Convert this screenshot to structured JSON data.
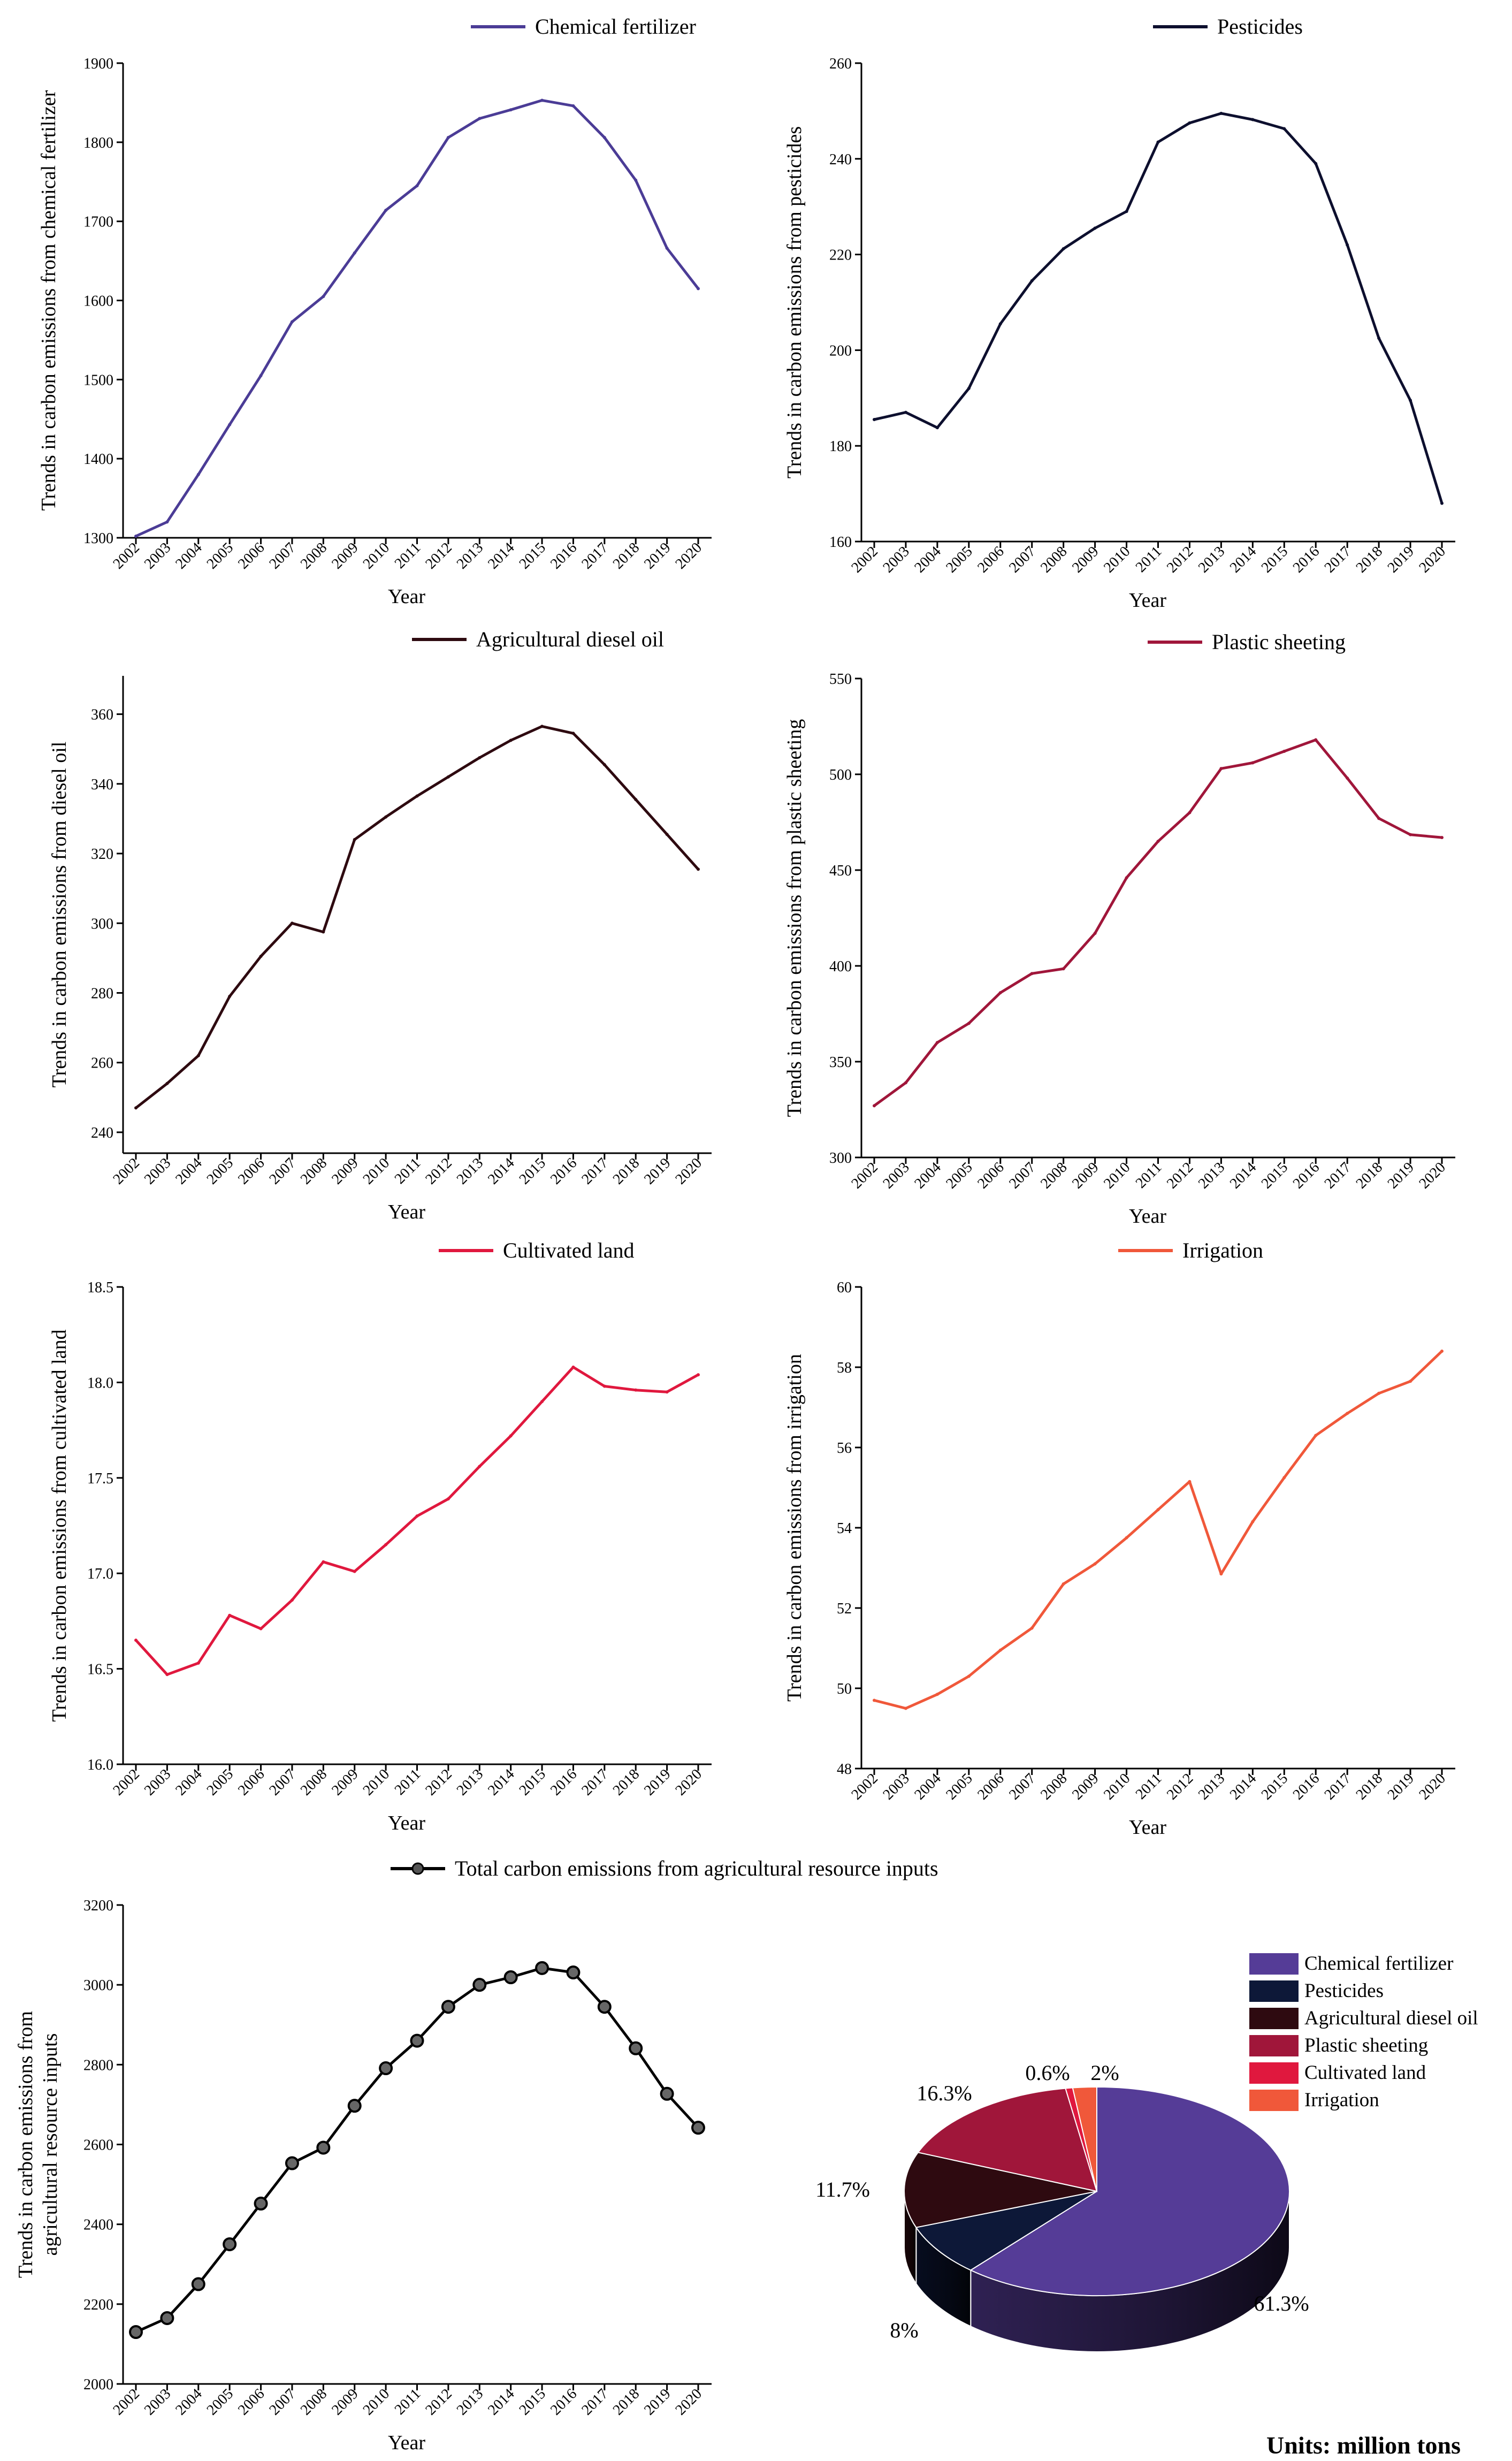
{
  "units_note": "Units: million tons",
  "chart_data": [
    {
      "type": "line",
      "color": "#4b3c96",
      "legend": "Chemical fertilizer",
      "xlabel": "Year",
      "ylabel": "Trends in carbon emissions from chemical fertilizer",
      "x": [
        "2002",
        "2003",
        "2004",
        "2005",
        "2006",
        "2007",
        "2008",
        "2009",
        "2010",
        "2011",
        "2012",
        "2013",
        "2014",
        "2015",
        "2016",
        "2017",
        "2018",
        "2019",
        "2020"
      ],
      "values": [
        1302,
        1320,
        1380,
        1443,
        1505,
        1573,
        1605,
        1660,
        1714,
        1745,
        1806,
        1830,
        1841,
        1853,
        1846,
        1806,
        1752,
        1666,
        1615
      ],
      "ylim": [
        1300,
        1900
      ],
      "yticks": [
        1300,
        1400,
        1500,
        1600,
        1700,
        1800,
        1900
      ]
    },
    {
      "type": "line",
      "color": "#0d0f2e",
      "legend": "Pesticides",
      "xlabel": "Year",
      "ylabel": "Trends in carbon emissions from pesticides",
      "x": [
        "2002",
        "2003",
        "2004",
        "2005",
        "2006",
        "2007",
        "2008",
        "2009",
        "2010",
        "2011",
        "2012",
        "2013",
        "2014",
        "2015",
        "2016",
        "2017",
        "2018",
        "2019",
        "2020"
      ],
      "values": [
        185.5,
        187,
        183.8,
        192,
        205.5,
        214.5,
        221.2,
        225.5,
        229,
        243.5,
        247.5,
        249.5,
        248.2,
        246.3,
        239,
        222,
        202.5,
        189.5,
        168
      ],
      "ylim": [
        160,
        260
      ],
      "yticks": [
        160,
        180,
        200,
        220,
        240,
        260
      ]
    },
    {
      "type": "line",
      "color": "#2e0a10",
      "legend": "Agricultural diesel oil",
      "xlabel": "Year",
      "ylabel": "Trends in carbon emissions from diesel oil",
      "x": [
        "2002",
        "2003",
        "2004",
        "2005",
        "2006",
        "2007",
        "2008",
        "2009",
        "2010",
        "2011",
        "2012",
        "2013",
        "2014",
        "2015",
        "2016",
        "2017",
        "2018",
        "2019",
        "2020"
      ],
      "values": [
        247,
        254,
        262,
        279,
        290.5,
        300,
        297.5,
        324,
        330.5,
        336.5,
        342,
        347.5,
        352.5,
        356.5,
        354.5,
        345.5,
        335.5,
        325.5,
        315.5
      ],
      "ylim": [
        234,
        371
      ],
      "yticks": [
        240,
        260,
        280,
        300,
        320,
        340,
        360
      ]
    },
    {
      "type": "line",
      "color": "#a0163a",
      "legend": "Plastic sheeting",
      "xlabel": "Year",
      "ylabel": "Trends in carbon emissions from plastic sheeting",
      "x": [
        "2002",
        "2003",
        "2004",
        "2005",
        "2006",
        "2007",
        "2008",
        "2009",
        "2010",
        "2011",
        "2012",
        "2013",
        "2014",
        "2015",
        "2016",
        "2017",
        "2018",
        "2019",
        "2020"
      ],
      "values": [
        327,
        339,
        360,
        370,
        386,
        396,
        398.5,
        417,
        446,
        465,
        480,
        503,
        506,
        512,
        518,
        498,
        477,
        468.5,
        467
      ],
      "ylim": [
        300,
        550
      ],
      "yticks": [
        300,
        350,
        400,
        450,
        500,
        550
      ]
    },
    {
      "type": "line",
      "color": "#e0183e",
      "legend": "Cultivated land",
      "xlabel": "Year",
      "ylabel": "Trends in carbon emissions from cultivated land",
      "x": [
        "2002",
        "2003",
        "2004",
        "2005",
        "2006",
        "2007",
        "2008",
        "2009",
        "2010",
        "2011",
        "2012",
        "2013",
        "2014",
        "2015",
        "2016",
        "2017",
        "2018",
        "2019",
        "2020"
      ],
      "values": [
        16.65,
        16.47,
        16.53,
        16.78,
        16.71,
        16.86,
        17.06,
        17.01,
        17.15,
        17.3,
        17.39,
        17.56,
        17.72,
        17.9,
        18.08,
        17.98,
        17.96,
        17.95,
        18.04
      ],
      "ylim": [
        16.0,
        18.5
      ],
      "yticks": [
        "16.0",
        "16.5",
        "17.0",
        "17.5",
        "18.0",
        "18.5"
      ]
    },
    {
      "type": "line",
      "color": "#f0583a",
      "legend": "Irrigation",
      "xlabel": "Year",
      "ylabel": "Trends in carbon emissions from irrigation",
      "x": [
        "2002",
        "2003",
        "2004",
        "2005",
        "2006",
        "2007",
        "2008",
        "2009",
        "2010",
        "2011",
        "2012",
        "2013",
        "2014",
        "2015",
        "2016",
        "2017",
        "2018",
        "2019",
        "2020"
      ],
      "values": [
        49.7,
        49.5,
        49.85,
        50.3,
        50.95,
        51.5,
        52.6,
        53.1,
        53.75,
        54.45,
        55.15,
        52.85,
        54.15,
        55.25,
        56.3,
        56.85,
        57.35,
        57.65,
        58.4
      ],
      "ylim": [
        48,
        60
      ],
      "yticks": [
        48,
        50,
        52,
        54,
        56,
        58,
        60
      ]
    },
    {
      "type": "line",
      "color": "#000000",
      "markers": true,
      "legend": "Total carbon emissions from agricultural resource inputs",
      "xlabel": "Year",
      "ylabel": [
        "Trends in carbon emissions from",
        "agricultural resource inputs"
      ],
      "x": [
        "2002",
        "2003",
        "2004",
        "2005",
        "2006",
        "2007",
        "2008",
        "2009",
        "2010",
        "2011",
        "2012",
        "2013",
        "2014",
        "2015",
        "2016",
        "2017",
        "2018",
        "2019",
        "2020"
      ],
      "values": [
        2130,
        2165,
        2250,
        2350,
        2452,
        2553,
        2592,
        2697,
        2791,
        2860,
        2945,
        3000,
        3019,
        3042,
        3031,
        2945,
        2841,
        2727,
        2642
      ],
      "ylim": [
        2000,
        3200
      ],
      "yticks": [
        2000,
        2200,
        2400,
        2600,
        2800,
        3000,
        3200
      ]
    },
    {
      "type": "pie",
      "categories": [
        "Chemical fertilizer",
        "Pesticides",
        "Agricultural diesel oil",
        "Plastic sheeting",
        "Cultivated land",
        "Irrigation"
      ],
      "values": [
        61.3,
        8,
        11.7,
        16.3,
        0.6,
        2
      ],
      "labels": [
        "61.3%",
        "8%",
        "11.7%",
        "16.3%",
        "0.6%",
        "2%"
      ],
      "colors": [
        "#553c97",
        "#0d1838",
        "#2e0a10",
        "#a0163a",
        "#e0183e",
        "#f0583a"
      ],
      "legend_position": "top-right"
    }
  ]
}
